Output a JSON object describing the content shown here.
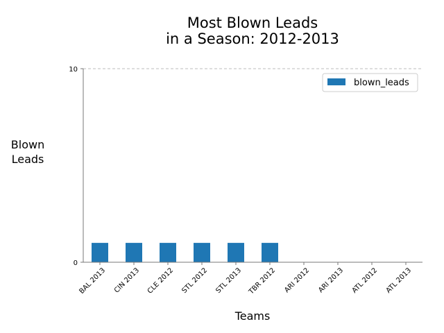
{
  "chart_data": {
    "type": "bar",
    "title_lines": [
      "Most Blown Leads",
      "in a Season: 2012-2013"
    ],
    "xlabel": "Teams",
    "ylabel_lines": [
      "Blown",
      "Leads"
    ],
    "categories": [
      "BAL 2013",
      "CIN 2013",
      "CLE 2012",
      "STL 2012",
      "STL 2013",
      "TBR 2012",
      "ARI 2012",
      "ARI 2013",
      "ATL 2012",
      "ATL 2013"
    ],
    "series": [
      {
        "name": "blown_leads",
        "values": [
          1,
          1,
          1,
          1,
          1,
          1,
          0,
          0,
          0,
          0
        ]
      }
    ],
    "ylim": [
      0,
      10
    ],
    "yticks": [
      "0",
      "10"
    ],
    "grid": "horizontal dashed at top tick",
    "legend_position": "top-right",
    "bar_color": "#1f77b4"
  }
}
